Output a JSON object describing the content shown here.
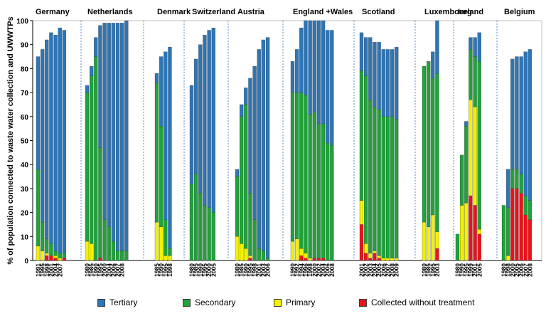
{
  "chart_data": {
    "type": "stacked-bar",
    "ylabel": "% of population connected to waste water collection and UWWTPs",
    "ylim": [
      0,
      100
    ],
    "yticks": [
      0,
      10,
      20,
      30,
      40,
      50,
      60,
      70,
      80,
      90,
      100
    ],
    "series": [
      {
        "name": "Tertiary",
        "key": "ter",
        "color": "#2E75B6"
      },
      {
        "name": "Secondary",
        "key": "sec",
        "color": "#1FA23A"
      },
      {
        "name": "Primary",
        "key": "pri",
        "color": "#F2F200"
      },
      {
        "name": "Collected without treatment",
        "key": "cwt",
        "color": "#E8141B"
      }
    ],
    "countries": [
      {
        "name": "Germany",
        "bars": [
          {
            "year": "1991",
            "cwt": 0,
            "pri": 6,
            "sec": 32,
            "ter": 47
          },
          {
            "year": "1995",
            "cwt": 0,
            "pri": 4,
            "sec": 12,
            "ter": 72
          },
          {
            "year": "1998",
            "cwt": 2,
            "pri": 1,
            "sec": 6,
            "ter": 83
          },
          {
            "year": "2001",
            "cwt": 2,
            "pri": 0,
            "sec": 5,
            "ter": 88
          },
          {
            "year": "2004",
            "cwt": 1,
            "pri": 1,
            "sec": 2,
            "ter": 90
          },
          {
            "year": "2007",
            "cwt": 0,
            "pri": 1,
            "sec": 2,
            "ter": 94
          },
          {
            "year": "",
            "cwt": 1,
            "pri": 0,
            "sec": 2,
            "ter": 93
          }
        ]
      },
      {
        "name": "Netherlands",
        "bars": [
          {
            "year": "1980",
            "cwt": 0,
            "pri": 8,
            "sec": 62,
            "ter": 3
          },
          {
            "year": "1985",
            "cwt": 0,
            "pri": 7,
            "sec": 70,
            "ter": 4
          },
          {
            "year": "1990",
            "cwt": 0,
            "pri": 0,
            "sec": 85,
            "ter": 8
          },
          {
            "year": "1995",
            "cwt": 1,
            "pri": 0,
            "sec": 46,
            "ter": 51
          },
          {
            "year": "2000",
            "cwt": 0,
            "pri": 0,
            "sec": 17,
            "ter": 82
          },
          {
            "year": "2004",
            "cwt": 0,
            "pri": 0,
            "sec": 14,
            "ter": 85
          },
          {
            "year": "2006",
            "cwt": 0,
            "pri": 0,
            "sec": 8,
            "ter": 91
          },
          {
            "year": "2007",
            "cwt": 0,
            "pri": 0,
            "sec": 4,
            "ter": 95
          },
          {
            "year": "2008",
            "cwt": 0,
            "pri": 0,
            "sec": 4,
            "ter": 95
          },
          {
            "year": "",
            "cwt": 0,
            "pri": 0,
            "sec": 4,
            "ter": 96
          }
        ]
      },
      {
        "name": "Denmark",
        "bars": [
          {
            "year": "1985",
            "cwt": 0,
            "pri": 16,
            "sec": 58,
            "ter": 4
          },
          {
            "year": "1990",
            "cwt": 0,
            "pri": 14,
            "sec": 42,
            "ter": 29
          },
          {
            "year": "1995",
            "cwt": 0,
            "pri": 2,
            "sec": 15,
            "ter": 70
          },
          {
            "year": "1998",
            "cwt": 0,
            "pri": 2,
            "sec": 3,
            "ter": 84
          }
        ]
      },
      {
        "name": "Switzerland",
        "bars": [
          {
            "year": "1980",
            "cwt": 0,
            "pri": 0,
            "sec": 32,
            "ter": 41
          },
          {
            "year": "1985",
            "cwt": 0,
            "pri": 0,
            "sec": 36,
            "ter": 48
          },
          {
            "year": "1990",
            "cwt": 0,
            "pri": 0,
            "sec": 28,
            "ter": 62
          },
          {
            "year": "1995",
            "cwt": 0,
            "pri": 0,
            "sec": 23,
            "ter": 71
          },
          {
            "year": "2000",
            "cwt": 0,
            "pri": 0,
            "sec": 22,
            "ter": 74
          },
          {
            "year": "2005",
            "cwt": 0,
            "pri": 0,
            "sec": 20,
            "ter": 77
          }
        ]
      },
      {
        "name": "Austria",
        "bars": [
          {
            "year": "1980",
            "cwt": 0,
            "pri": 10,
            "sec": 25,
            "ter": 3
          },
          {
            "year": "1985",
            "cwt": 0,
            "pri": 7,
            "sec": 53,
            "ter": 5
          },
          {
            "year": "1990",
            "cwt": 0,
            "pri": 5,
            "sec": 60,
            "ter": 7
          },
          {
            "year": "1995",
            "cwt": 1,
            "pri": 1,
            "sec": 26,
            "ter": 48
          },
          {
            "year": "1998",
            "cwt": 0,
            "pri": 0,
            "sec": 17,
            "ter": 64
          },
          {
            "year": "2001",
            "cwt": 0,
            "pri": 0,
            "sec": 5,
            "ter": 83
          },
          {
            "year": "2003",
            "cwt": 0,
            "pri": 0,
            "sec": 4,
            "ter": 88
          },
          {
            "year": "2006",
            "cwt": 0,
            "pri": 0,
            "sec": 1,
            "ter": 92
          }
        ]
      },
      {
        "name": "England +Wales",
        "bars": [
          {
            "year": "1990",
            "cwt": 0,
            "pri": 8,
            "sec": 62,
            "ter": 13
          },
          {
            "year": "1992",
            "cwt": 0,
            "pri": 9,
            "sec": 61,
            "ter": 18
          },
          {
            "year": "1994",
            "cwt": 2,
            "pri": 3,
            "sec": 65,
            "ter": 27
          },
          {
            "year": "1996",
            "cwt": 1,
            "pri": 2,
            "sec": 66,
            "ter": 31
          },
          {
            "year": "1998",
            "cwt": 0,
            "pri": 1,
            "sec": 60,
            "ter": 39
          },
          {
            "year": "2000",
            "cwt": 1,
            "pri": 0,
            "sec": 61,
            "ter": 38
          },
          {
            "year": "2002",
            "cwt": 1,
            "pri": 0,
            "sec": 56,
            "ter": 43
          },
          {
            "year": "2004",
            "cwt": 1,
            "pri": 0,
            "sec": 56,
            "ter": 43
          },
          {
            "year": "2006",
            "cwt": 0,
            "pri": 0,
            "sec": 49,
            "ter": 47
          },
          {
            "year": "2008",
            "cwt": 0,
            "pri": 0,
            "sec": 48,
            "ter": 48
          }
        ]
      },
      {
        "name": "Scotland",
        "bars": [
          {
            "year": "2001",
            "cwt": 15,
            "pri": 10,
            "sec": 54,
            "ter": 16
          },
          {
            "year": "2002",
            "cwt": 3,
            "pri": 4,
            "sec": 70,
            "ter": 16
          },
          {
            "year": "2003",
            "cwt": 1,
            "pri": 2,
            "sec": 64,
            "ter": 26
          },
          {
            "year": "2004",
            "cwt": 3,
            "pri": 1,
            "sec": 60,
            "ter": 27
          },
          {
            "year": "2005",
            "cwt": 1,
            "pri": 1,
            "sec": 61,
            "ter": 28
          },
          {
            "year": "2006",
            "cwt": 0,
            "pri": 1,
            "sec": 59,
            "ter": 28
          },
          {
            "year": "2007",
            "cwt": 0,
            "pri": 1,
            "sec": 59,
            "ter": 28
          },
          {
            "year": "2008",
            "cwt": 0,
            "pri": 1,
            "sec": 59,
            "ter": 28
          },
          {
            "year": "2009",
            "cwt": 0,
            "pri": 1,
            "sec": 58,
            "ter": 30
          }
        ]
      },
      {
        "name": "Luxembourg",
        "bars": [
          {
            "year": "1980",
            "cwt": 0,
            "pri": 16,
            "sec": 65,
            "ter": 0
          },
          {
            "year": "1985",
            "cwt": 0,
            "pri": 14,
            "sec": 69,
            "ter": 0
          },
          {
            "year": "1995",
            "cwt": 0,
            "pri": 19,
            "sec": 57,
            "ter": 11
          },
          {
            "year": "2003",
            "cwt": 5,
            "pri": 7,
            "sec": 66,
            "ter": 22
          }
        ]
      },
      {
        "name": "Ireland",
        "bars": [
          {
            "year": "1980",
            "cwt": 0,
            "pri": 0,
            "sec": 11,
            "ter": 0
          },
          {
            "year": "1990",
            "cwt": 0,
            "pri": 23,
            "sec": 21,
            "ter": 0
          },
          {
            "year": "1995",
            "cwt": 0,
            "pri": 24,
            "sec": 32,
            "ter": 2
          },
          {
            "year": "1999",
            "cwt": 27,
            "pri": 40,
            "sec": 21,
            "ter": 5
          },
          {
            "year": "2001",
            "cwt": 23,
            "pri": 41,
            "sec": 21,
            "ter": 8
          },
          {
            "year": "2005",
            "cwt": 11,
            "pri": 2,
            "sec": 70,
            "ter": 12
          }
        ]
      },
      {
        "name": "Belgium",
        "bars": [
          {
            "year": "1980",
            "cwt": 0,
            "pri": 0,
            "sec": 23,
            "ter": 0
          },
          {
            "year": "1998",
            "cwt": 0,
            "pri": 2,
            "sec": 20,
            "ter": 16
          },
          {
            "year": "2000",
            "cwt": 30,
            "pri": 0,
            "sec": 8,
            "ter": 46
          },
          {
            "year": "2005",
            "cwt": 30,
            "pri": 0,
            "sec": 8,
            "ter": 47
          },
          {
            "year": "2006",
            "cwt": 28,
            "pri": 0,
            "sec": 8,
            "ter": 49
          },
          {
            "year": "2007",
            "cwt": 19,
            "pri": 0,
            "sec": 8,
            "ter": 60
          },
          {
            "year": "2008",
            "cwt": 17,
            "pri": 0,
            "sec": 8,
            "ter": 63
          }
        ]
      }
    ]
  }
}
